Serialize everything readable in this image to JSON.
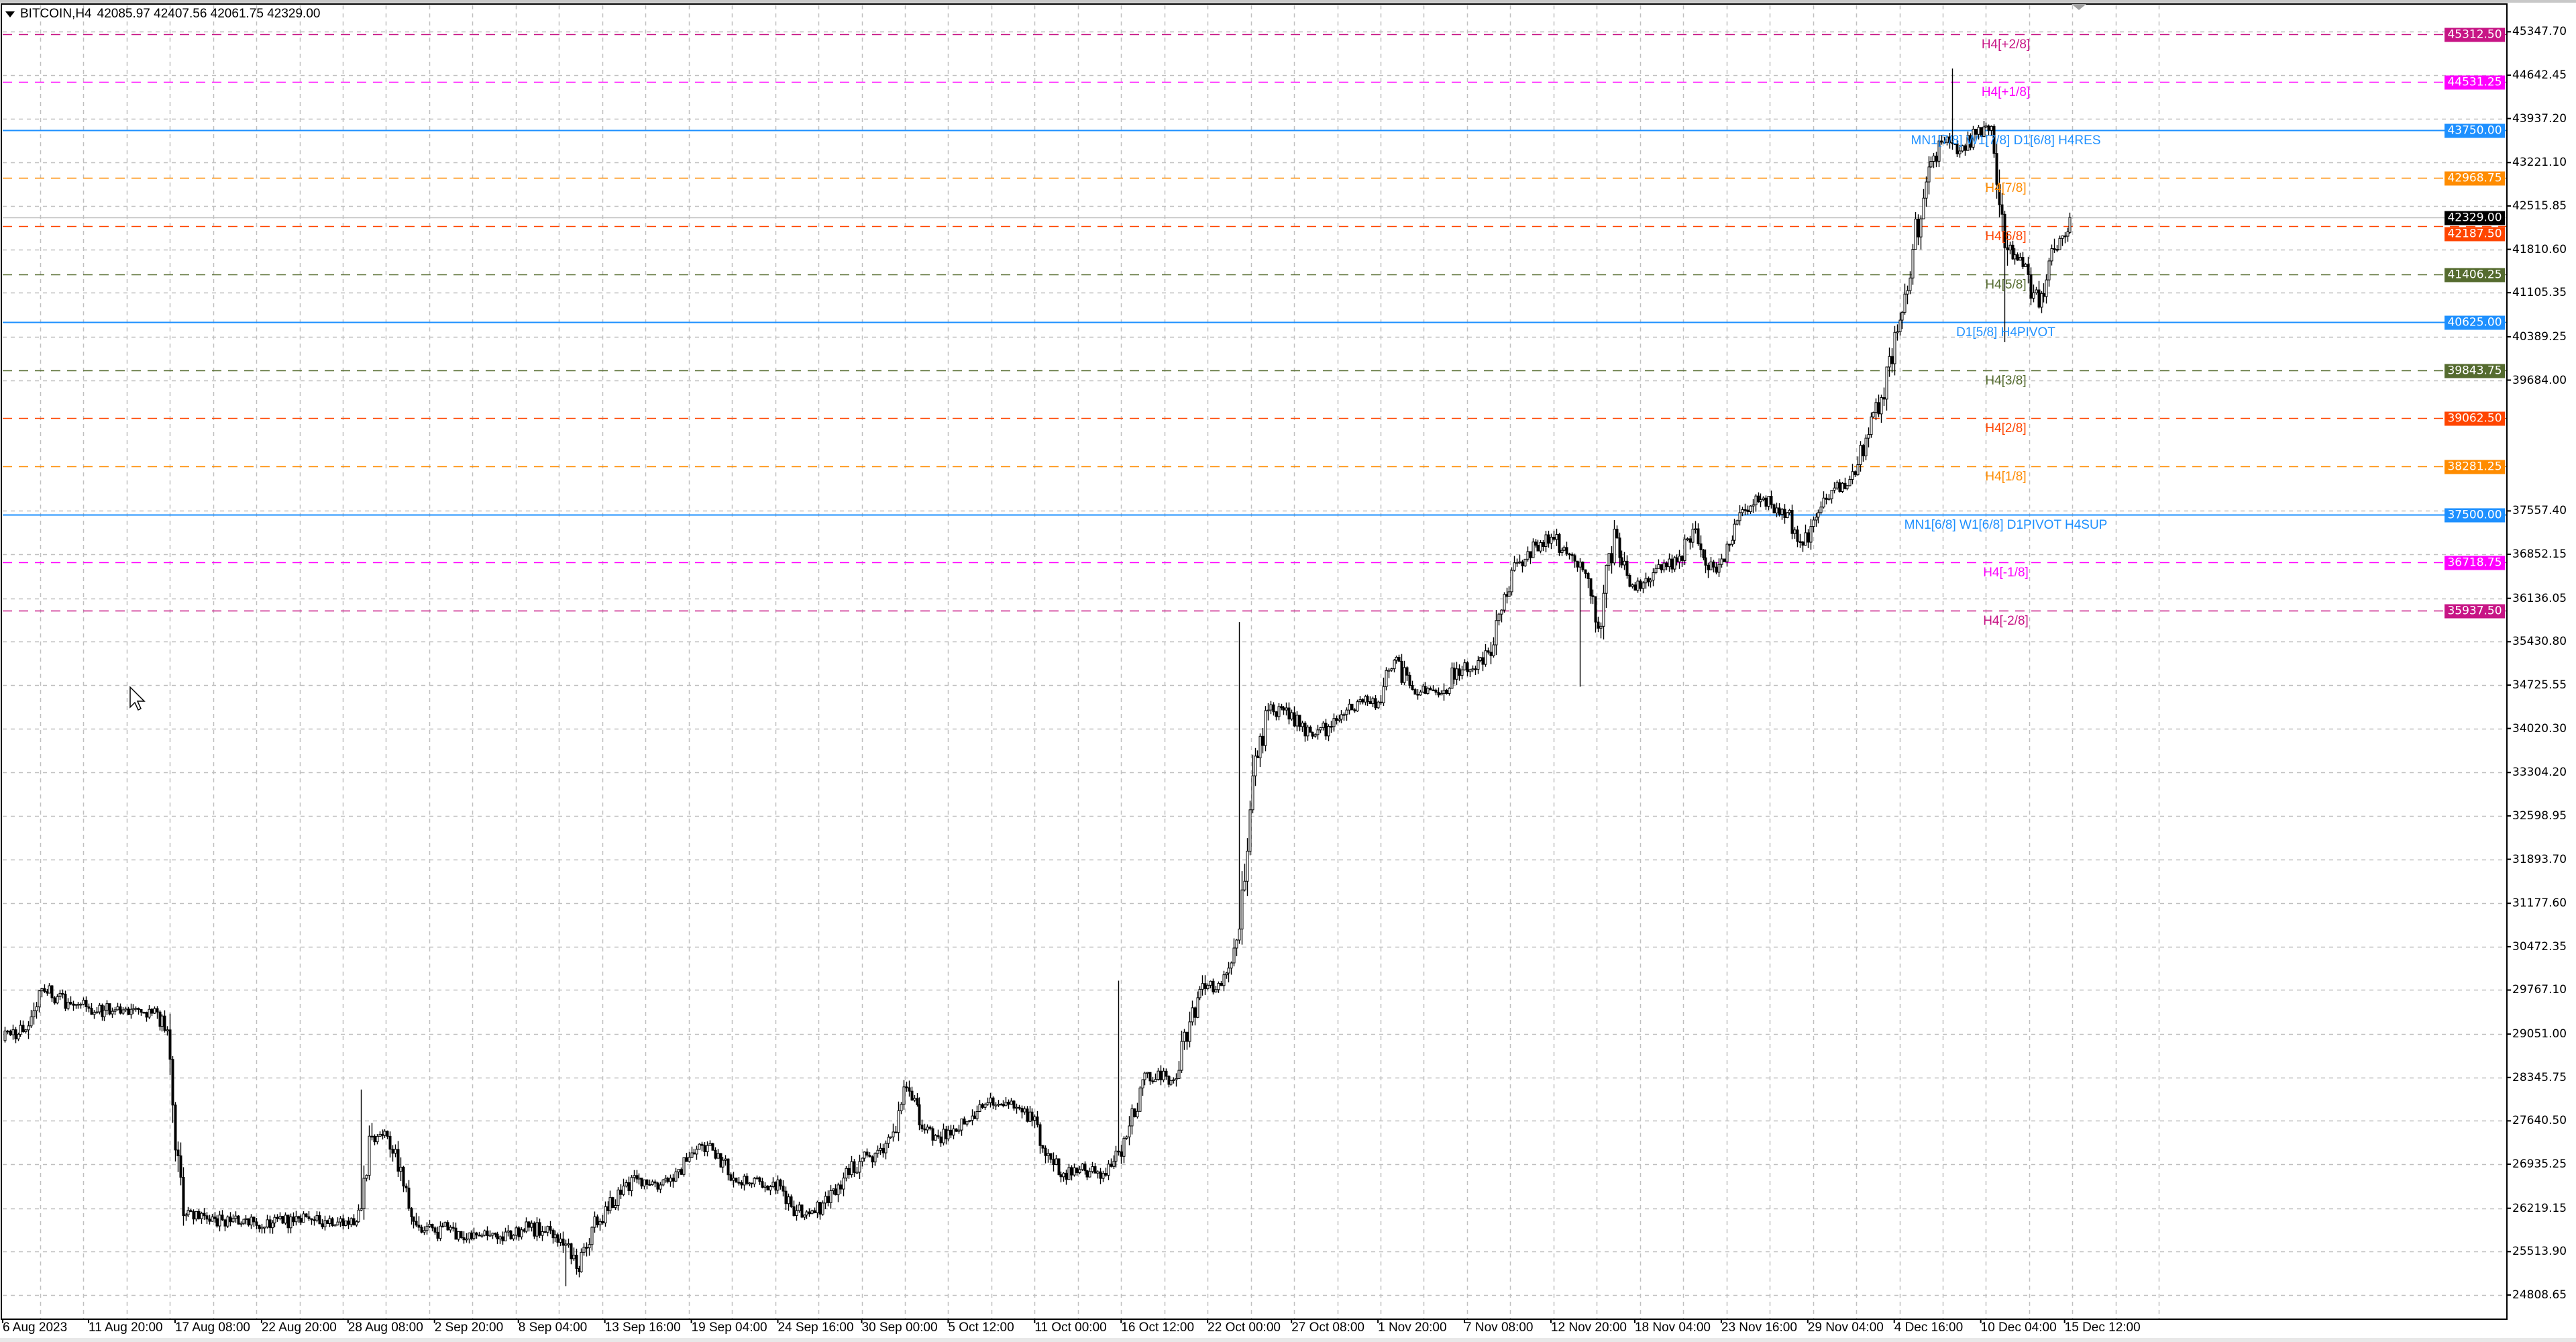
{
  "header": {
    "symbol": "BITCOIN,H4",
    "ohlc": "42085.97 42407.56 42061.75 42329.00"
  },
  "colors": {
    "grid": "#c0c0c0",
    "axis": "#000000",
    "bull_body": "#ffffff",
    "bear_body": "#000000",
    "candle_outline": "#000000",
    "current_price_line": "#c0c0c0",
    "current_price_label": "#000000"
  },
  "icons": {
    "menu": "triangle-down-icon",
    "cursor": "mouse-pointer-icon",
    "shift_marker": "chart-shift-triangle-icon"
  },
  "chart_data": {
    "type": "candlestick",
    "timeframe": "H4",
    "current_price": 42329.0,
    "last_bar": {
      "open": 42085.97,
      "high": 42407.56,
      "low": 42061.75,
      "close": 42329.0
    },
    "grid": true,
    "price_ticks": [
      "45347.70",
      "44642.45",
      "43937.20",
      "43221.10",
      "42515.85",
      "41810.60",
      "41105.35",
      "40389.25",
      "39684.00",
      "37557.40",
      "36852.15",
      "36136.05",
      "35430.80",
      "34725.55",
      "34020.30",
      "33304.20",
      "32598.95",
      "31893.70",
      "31177.60",
      "30472.35",
      "29767.10",
      "29051.00",
      "28345.75",
      "27640.50",
      "26935.25",
      "26219.15",
      "25513.90",
      "24808.65"
    ],
    "time_ticks": [
      "6 Aug 2023",
      "11 Aug 20:00",
      "17 Aug 08:00",
      "22 Aug 20:00",
      "28 Aug 08:00",
      "2 Sep 20:00",
      "8 Sep 04:00",
      "13 Sep 16:00",
      "19 Sep 04:00",
      "24 Sep 16:00",
      "30 Sep 00:00",
      "5 Oct 12:00",
      "11 Oct 00:00",
      "16 Oct 12:00",
      "22 Oct 00:00",
      "27 Oct 08:00",
      "1 Nov 20:00",
      "7 Nov 08:00",
      "12 Nov 20:00",
      "18 Nov 04:00",
      "23 Nov 16:00",
      "29 Nov 04:00",
      "4 Dec 16:00",
      "10 Dec 04:00",
      "15 Dec 12:00"
    ],
    "levels": [
      {
        "price": 45312.5,
        "label": "45312.50",
        "text": "H4[+2/8]",
        "color": "#c71585",
        "style": "dashed"
      },
      {
        "price": 44531.25,
        "label": "44531.25",
        "text": "H4[+1/8]",
        "color": "#ff00ff",
        "style": "dashed"
      },
      {
        "price": 43750.0,
        "label": "43750.00",
        "text": "MN1[7/8] W1[7/8] D1[6/8] H4RES",
        "color": "#1e90ff",
        "style": "solid"
      },
      {
        "price": 42968.75,
        "label": "42968.75",
        "text": "H4[7/8]",
        "color": "#ff8c00",
        "style": "dashed"
      },
      {
        "price": 42187.5,
        "label": "42187.50",
        "text": "H4[6/8]",
        "color": "#ff4500",
        "style": "dashed"
      },
      {
        "price": 41406.25,
        "label": "41406.25",
        "text": "H4[5/8]",
        "color": "#556b2f",
        "style": "dashed"
      },
      {
        "price": 40625.0,
        "label": "40625.00",
        "text": "D1[5/8] H4PIVOT",
        "color": "#1e90ff",
        "style": "solid"
      },
      {
        "price": 39843.75,
        "label": "39843.75",
        "text": "H4[3/8]",
        "color": "#556b2f",
        "style": "dashed"
      },
      {
        "price": 39062.5,
        "label": "39062.50",
        "text": "H4[2/8]",
        "color": "#ff4500",
        "style": "dashed"
      },
      {
        "price": 38281.25,
        "label": "38281.25",
        "text": "H4[1/8]",
        "color": "#ff8c00",
        "style": "dashed"
      },
      {
        "price": 37500.0,
        "label": "37500.00",
        "text": "MN1[6/8] W1[6/8] D1PIVOT H4SUP",
        "color": "#1e90ff",
        "style": "solid"
      },
      {
        "price": 36718.75,
        "label": "36718.75",
        "text": "H4[-1/8]",
        "color": "#ff00ff",
        "style": "dashed"
      },
      {
        "price": 35937.5,
        "label": "35937.50",
        "text": "H4[-2/8]",
        "color": "#c71585",
        "style": "dashed"
      }
    ],
    "current_price_label": "42329.00",
    "daily_closes": [
      [
        "2023-08-06",
        29040
      ],
      [
        "2023-08-07",
        29120
      ],
      [
        "2023-08-08",
        29790
      ],
      [
        "2023-08-09",
        29660
      ],
      [
        "2023-08-10",
        29520
      ],
      [
        "2023-08-11",
        29470
      ],
      [
        "2023-08-12",
        29440
      ],
      [
        "2023-08-13",
        29390
      ],
      [
        "2023-08-14",
        29470
      ],
      [
        "2023-08-15",
        29390
      ],
      [
        "2023-08-16",
        29120
      ],
      [
        "2023-08-17",
        26100
      ],
      [
        "2023-08-18",
        26050
      ],
      [
        "2023-08-19",
        26050
      ],
      [
        "2023-08-20",
        26000
      ],
      [
        "2023-08-21",
        26050
      ],
      [
        "2023-08-22",
        25910
      ],
      [
        "2023-08-23",
        26050
      ],
      [
        "2023-08-24",
        26000
      ],
      [
        "2023-08-25",
        26050
      ],
      [
        "2023-08-26",
        26020
      ],
      [
        "2023-08-27",
        26050
      ],
      [
        "2023-08-28",
        26000
      ],
      [
        "2023-08-29",
        27390
      ],
      [
        "2023-08-30",
        27390
      ],
      [
        "2023-08-31",
        26580
      ],
      [
        "2023-09-01",
        25910
      ],
      [
        "2023-09-02",
        25830
      ],
      [
        "2023-09-03",
        25910
      ],
      [
        "2023-09-04",
        25720
      ],
      [
        "2023-09-05",
        25780
      ],
      [
        "2023-09-06",
        25720
      ],
      [
        "2023-09-07",
        25780
      ],
      [
        "2023-09-08",
        25910
      ],
      [
        "2023-09-09",
        25830
      ],
      [
        "2023-09-10",
        25720
      ],
      [
        "2023-09-11",
        25240
      ],
      [
        "2023-09-12",
        25910
      ],
      [
        "2023-09-13",
        26180
      ],
      [
        "2023-09-14",
        26580
      ],
      [
        "2023-09-15",
        26710
      ],
      [
        "2023-09-16",
        26630
      ],
      [
        "2023-09-17",
        26710
      ],
      [
        "2023-09-18",
        26980
      ],
      [
        "2023-09-19",
        27240
      ],
      [
        "2023-09-20",
        27110
      ],
      [
        "2023-09-21",
        26710
      ],
      [
        "2023-09-22",
        26630
      ],
      [
        "2023-09-23",
        26580
      ],
      [
        "2023-09-24",
        26580
      ],
      [
        "2023-09-25",
        26180
      ],
      [
        "2023-09-26",
        26180
      ],
      [
        "2023-09-27",
        26310
      ],
      [
        "2023-09-28",
        26710
      ],
      [
        "2023-09-29",
        26980
      ],
      [
        "2023-09-30",
        27110
      ],
      [
        "2023-10-01",
        27380
      ],
      [
        "2023-10-02",
        28180
      ],
      [
        "2023-10-03",
        27510
      ],
      [
        "2023-10-04",
        27380
      ],
      [
        "2023-10-05",
        27510
      ],
      [
        "2023-10-06",
        27650
      ],
      [
        "2023-10-07",
        27910
      ],
      [
        "2023-10-08",
        27910
      ],
      [
        "2023-10-09",
        27860
      ],
      [
        "2023-10-10",
        27650
      ],
      [
        "2023-10-11",
        27110
      ],
      [
        "2023-10-12",
        26790
      ],
      [
        "2023-10-13",
        26850
      ],
      [
        "2023-10-14",
        26790
      ],
      [
        "2023-10-15",
        26900
      ],
      [
        "2023-10-16",
        27380
      ],
      [
        "2023-10-17",
        28310
      ],
      [
        "2023-10-18",
        28450
      ],
      [
        "2023-10-19",
        28310
      ],
      [
        "2023-10-20",
        29250
      ],
      [
        "2023-10-21",
        29790
      ],
      [
        "2023-10-22",
        29840
      ],
      [
        "2023-10-23",
        30580
      ],
      [
        "2023-10-24",
        33250
      ],
      [
        "2023-10-25",
        34320
      ],
      [
        "2023-10-26",
        34320
      ],
      [
        "2023-10-27",
        34050
      ],
      [
        "2023-10-28",
        33920
      ],
      [
        "2023-10-29",
        34050
      ],
      [
        "2023-10-30",
        34320
      ],
      [
        "2023-10-31",
        34450
      ],
      [
        "2023-11-01",
        34450
      ],
      [
        "2023-11-02",
        35130
      ],
      [
        "2023-11-03",
        34720
      ],
      [
        "2023-11-04",
        34590
      ],
      [
        "2023-11-05",
        34590
      ],
      [
        "2023-11-06",
        34990
      ],
      [
        "2023-11-07",
        34990
      ],
      [
        "2023-11-08",
        35260
      ],
      [
        "2023-11-09",
        36200
      ],
      [
        "2023-11-10",
        36730
      ],
      [
        "2023-11-11",
        37000
      ],
      [
        "2023-11-12",
        37130
      ],
      [
        "2023-11-13",
        36860
      ],
      [
        "2023-11-14",
        36600
      ],
      [
        "2023-11-15",
        35650
      ],
      [
        "2023-11-16",
        37260
      ],
      [
        "2023-11-17",
        36330
      ],
      [
        "2023-11-18",
        36460
      ],
      [
        "2023-11-19",
        36600
      ],
      [
        "2023-11-20",
        36730
      ],
      [
        "2023-11-21",
        37260
      ],
      [
        "2023-11-22",
        36600
      ],
      [
        "2023-11-23",
        36730
      ],
      [
        "2023-11-24",
        37530
      ],
      [
        "2023-11-25",
        37800
      ],
      [
        "2023-11-26",
        37660
      ],
      [
        "2023-11-27",
        37530
      ],
      [
        "2023-11-28",
        37000
      ],
      [
        "2023-11-29",
        37530
      ],
      [
        "2023-11-30",
        37930
      ],
      [
        "2023-12-01",
        38070
      ],
      [
        "2023-12-02",
        38740
      ],
      [
        "2023-12-03",
        39400
      ],
      [
        "2023-12-04",
        40470
      ],
      [
        "2023-12-05",
        41810
      ],
      [
        "2023-12-06",
        43150
      ],
      [
        "2023-12-07",
        43550
      ],
      [
        "2023-12-08",
        43410
      ],
      [
        "2023-12-09",
        43680
      ],
      [
        "2023-12-10",
        43810
      ],
      [
        "2023-12-11",
        41800
      ],
      [
        "2023-12-12",
        41530
      ],
      [
        "2023-12-13",
        40870
      ],
      [
        "2023-12-14",
        41810
      ],
      [
        "2023-12-15",
        42329
      ]
    ],
    "extremes": [
      {
        "date": "2023-08-29",
        "high": 28150
      },
      {
        "date": "2023-09-11",
        "low": 24950
      },
      {
        "date": "2023-10-16",
        "high": 29920
      },
      {
        "date": "2023-10-24",
        "high": 35750
      },
      {
        "date": "2023-11-14",
        "low": 34700
      },
      {
        "date": "2023-12-08",
        "high": 44750
      },
      {
        "date": "2023-12-11",
        "low": 40300
      }
    ]
  }
}
